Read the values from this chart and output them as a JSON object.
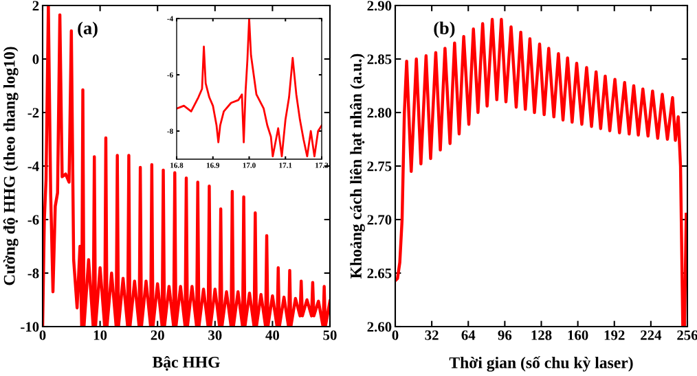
{
  "chart_data": [
    {
      "type": "line",
      "xlabel": "Bậc HHG",
      "ylabel": "Cường độ HHG (theo thang log10)",
      "annotations": [
        "(a)"
      ],
      "xlim": [
        0,
        50
      ],
      "ylim": [
        -10,
        2
      ],
      "xticks": [
        0,
        10,
        20,
        30,
        40,
        50
      ],
      "yticks": [
        -10,
        -8,
        -6,
        -4,
        -2,
        0,
        2
      ],
      "grid": false,
      "legend": false,
      "marker": "none",
      "line_style": "solid",
      "series": [
        {
          "color": "#ff0000",
          "x": [
            0,
            0.3,
            0.6,
            1,
            1.4,
            1.8,
            2.2,
            2.6,
            3,
            3.4,
            4,
            4.6,
            5,
            5.4,
            6,
            6.5,
            6.8,
            7,
            7.2,
            8,
            8.8,
            9,
            9.2,
            10,
            10.8,
            11,
            11.2,
            12,
            12.8,
            13,
            13.2,
            14,
            14.8,
            15,
            15.2,
            16,
            16.8,
            17,
            17.2,
            18,
            18.8,
            19,
            19.2,
            20,
            20.8,
            21,
            21.2,
            22,
            22.8,
            23,
            23.2,
            24,
            24.8,
            25,
            25.2,
            26,
            26.8,
            27,
            27.2,
            28,
            28.8,
            29,
            29.2,
            30,
            30.8,
            31,
            31.2,
            32,
            32.8,
            33,
            33.2,
            34,
            34.8,
            35,
            35.2,
            36,
            36.8,
            37,
            37.2,
            38,
            38.8,
            39,
            39.2,
            40,
            40.8,
            41,
            41.2,
            42,
            42.8,
            43,
            43.2,
            44,
            44.8,
            45,
            45.2,
            46,
            46.8,
            47,
            47.2,
            48,
            48.8,
            49,
            49.2,
            50
          ],
          "values": [
            -10,
            -6,
            -4.5,
            2,
            -5,
            -8.7,
            -5.5,
            -5,
            1.65,
            -4.4,
            -4.3,
            -4.6,
            1.05,
            -7.5,
            -9.3,
            -7,
            -10,
            -1.15,
            -10,
            -7.5,
            -10,
            -3.65,
            -10,
            -7.8,
            -10,
            -2.95,
            -10,
            -8,
            -10,
            -3.6,
            -10,
            -8.2,
            -10,
            -3.6,
            -10,
            -8.3,
            -10,
            -4.05,
            -10,
            -8.3,
            -10,
            -3.95,
            -10,
            -8.4,
            -10,
            -4.15,
            -10,
            -8.5,
            -10,
            -4.25,
            -10,
            -8.5,
            -10,
            -4.45,
            -10,
            -8.5,
            -10,
            -4.6,
            -10,
            -8.6,
            -10,
            -4.75,
            -10,
            -8.6,
            -10,
            -5.6,
            -10,
            -8.7,
            -10,
            -4.95,
            -10,
            -8.7,
            -10,
            -5.15,
            -10,
            -8.75,
            -10,
            -5.75,
            -10,
            -8.8,
            -10,
            -6.6,
            -10,
            -8.85,
            -10,
            -7.8,
            -10,
            -8.9,
            -10,
            -7.9,
            -10,
            -8.95,
            -9.6,
            -8.3,
            -9.6,
            -9,
            -9.6,
            -8.35,
            -9.6,
            -9.05,
            -10,
            -8.5,
            -10,
            -9.05
          ]
        }
      ]
    },
    {
      "type": "line",
      "xlim": [
        16.8,
        17.2
      ],
      "ylim": [
        -9,
        -4
      ],
      "xticks": [
        16.8,
        16.9,
        {
          "value": 17.0,
          "label": "17.0"
        },
        17.1,
        17.2
      ],
      "yticks": [
        -8,
        -6,
        -4
      ],
      "grid": false,
      "legend": false,
      "marker": "none",
      "line_style": "solid",
      "series": [
        {
          "color": "#ff0000",
          "x": [
            16.8,
            16.82,
            16.84,
            16.86,
            16.87,
            16.875,
            16.88,
            16.89,
            16.9,
            16.91,
            16.915,
            16.92,
            16.93,
            16.95,
            16.97,
            16.98,
            16.985,
            16.99,
            16.995,
            17.0,
            17.005,
            17.02,
            17.04,
            17.05,
            17.06,
            17.065,
            17.08,
            17.09,
            17.1,
            17.11,
            17.12,
            17.13,
            17.14,
            17.15,
            17.16,
            17.17,
            17.18,
            17.19,
            17.2
          ],
          "values": [
            -7.2,
            -7.1,
            -7.3,
            -6.8,
            -6.5,
            -5.0,
            -6.3,
            -6.8,
            -7.1,
            -7.8,
            -8.4,
            -7.8,
            -7.3,
            -7.0,
            -6.9,
            -6.7,
            -8.4,
            -6.6,
            -5.5,
            -4.0,
            -5.3,
            -6.7,
            -7.2,
            -7.8,
            -8.2,
            -8.9,
            -7.9,
            -8.9,
            -7.6,
            -6.8,
            -5.4,
            -6.7,
            -7.6,
            -8.3,
            -8.9,
            -8.0,
            -8.9,
            -8.0,
            -7.8
          ]
        }
      ]
    },
    {
      "type": "line",
      "xlabel": "Thời gian (số chu kỳ laser)",
      "ylabel": "Khoảng cách liên hạt nhân (a.u.)",
      "annotations": [
        "(b)"
      ],
      "xlim": [
        0,
        256
      ],
      "ylim": [
        2.6,
        2.9
      ],
      "xticks": [
        0,
        32,
        64,
        96,
        128,
        160,
        192,
        224,
        256
      ],
      "yticks": [
        {
          "value": 2.6,
          "label": "2.60"
        },
        2.65,
        {
          "value": 2.7,
          "label": "2.70"
        },
        2.75,
        {
          "value": 2.8,
          "label": "2.80"
        },
        2.85,
        {
          "value": 2.9,
          "label": "2.90"
        }
      ],
      "grid": false,
      "legend": false,
      "marker": "none",
      "line_style": "solid",
      "series": [
        {
          "color": "#ff0000",
          "x": [
            0,
            2,
            4,
            6,
            8,
            10,
            14,
            18.5,
            22.5,
            27,
            31,
            35.5,
            39.5,
            43.6,
            48,
            52,
            56,
            60,
            64.5,
            68.5,
            72.5,
            76.6,
            80.5,
            85,
            89,
            93,
            97,
            101.5,
            106,
            110,
            114,
            118,
            122,
            126.5,
            130.5,
            134.5,
            139,
            143,
            147,
            151,
            155,
            159,
            163.5,
            167.7,
            172,
            176,
            180,
            184,
            188,
            192.5,
            196.5,
            201,
            205,
            209,
            213,
            217,
            221.5,
            225.5,
            230,
            234,
            238.5,
            243,
            245.5,
            248,
            250,
            252,
            253.5,
            255
          ],
          "values": [
            2.643,
            2.645,
            2.66,
            2.7,
            2.8,
            2.848,
            2.745,
            2.85,
            2.752,
            2.853,
            2.757,
            2.856,
            2.765,
            2.86,
            2.771,
            2.865,
            2.78,
            2.871,
            2.789,
            2.878,
            2.8,
            2.883,
            2.806,
            2.887,
            2.812,
            2.887,
            2.81,
            2.88,
            2.805,
            2.875,
            2.803,
            2.869,
            2.8,
            2.864,
            2.798,
            2.86,
            2.796,
            2.855,
            2.793,
            2.851,
            2.791,
            2.846,
            2.789,
            2.842,
            2.787,
            2.838,
            2.785,
            2.834,
            2.783,
            2.831,
            2.781,
            2.828,
            2.78,
            2.825,
            2.779,
            2.822,
            2.778,
            2.82,
            2.776,
            2.817,
            2.775,
            2.814,
            2.774,
            2.796,
            2.75,
            2.6,
            2.6,
            2.705
          ]
        }
      ]
    }
  ]
}
